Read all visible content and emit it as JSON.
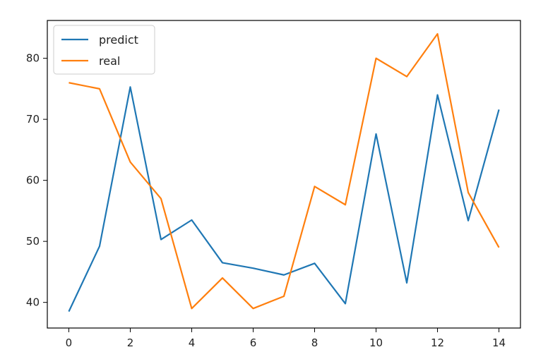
{
  "chart_data": {
    "type": "line",
    "x": [
      0,
      1,
      2,
      3,
      4,
      5,
      6,
      7,
      8,
      9,
      10,
      11,
      12,
      13,
      14
    ],
    "series": [
      {
        "name": "predict",
        "color": "#1f77b4",
        "values": [
          38.5,
          49.2,
          75.3,
          50.3,
          53.5,
          46.5,
          45.6,
          44.5,
          46.4,
          39.8,
          67.6,
          43.2,
          74.0,
          53.4,
          71.6
        ]
      },
      {
        "name": "real",
        "color": "#ff7f0e",
        "values": [
          76,
          75,
          63,
          57,
          39,
          44,
          39,
          41,
          59,
          56,
          80,
          77,
          84,
          58,
          49
        ]
      }
    ],
    "xlim": [
      -0.7,
      14.7
    ],
    "ylim": [
      35.8,
      86.2
    ],
    "xticks": [
      0,
      2,
      4,
      6,
      8,
      10,
      12,
      14
    ],
    "yticks": [
      40,
      50,
      60,
      70,
      80
    ],
    "title": "",
    "xlabel": "",
    "ylabel": "",
    "grid": false,
    "legend_position": "top-left"
  }
}
